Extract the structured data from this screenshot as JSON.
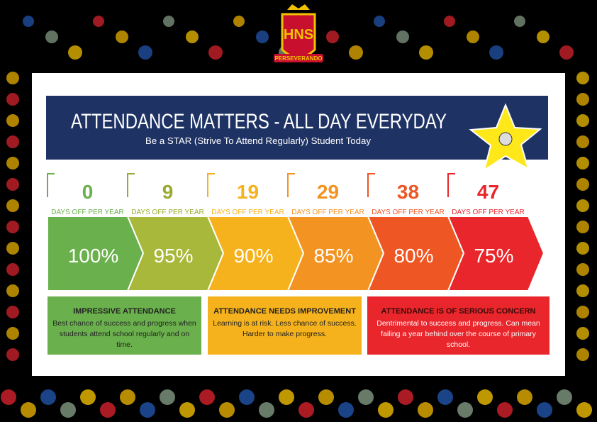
{
  "logo": {
    "initials": "HNS",
    "motto": "PERSEVERANDO"
  },
  "header": {
    "title": "ATTENDANCE MATTERS - ALL DAY EVERYDAY",
    "subtitle": "Be a STAR (Strive To Attend Regularly) Student Today"
  },
  "levels": [
    {
      "days": "0",
      "caption": "DAYS OFF PER YEAR",
      "percent": "100%"
    },
    {
      "days": "9",
      "caption": "DAYS OFF PER YEAR",
      "percent": "95%"
    },
    {
      "days": "19",
      "caption": "DAYS OFF PER YEAR",
      "percent": "90%"
    },
    {
      "days": "29",
      "caption": "DAYS OFF PER YEAR",
      "percent": "85%"
    },
    {
      "days": "38",
      "caption": "DAYS OFF PER YEAR",
      "percent": "80%"
    },
    {
      "days": "47",
      "caption": "DAYS OFF PER YEAR",
      "percent": "75%"
    }
  ],
  "categories": [
    {
      "title": "IMPRESSIVE ATTENDANCE",
      "text": "Best chance of success and progress when students attend school regularly and on time."
    },
    {
      "title": "ATTENDANCE NEEDS IMPROVEMENT",
      "text": "Learning is at risk. Less chance of success. Harder to make progress."
    },
    {
      "title": "ATTENDANCE IS OF SERIOUS CONCERN",
      "text": "Dentrimental to success and progress. Can mean failing a year behind over the course of primary school."
    }
  ]
}
